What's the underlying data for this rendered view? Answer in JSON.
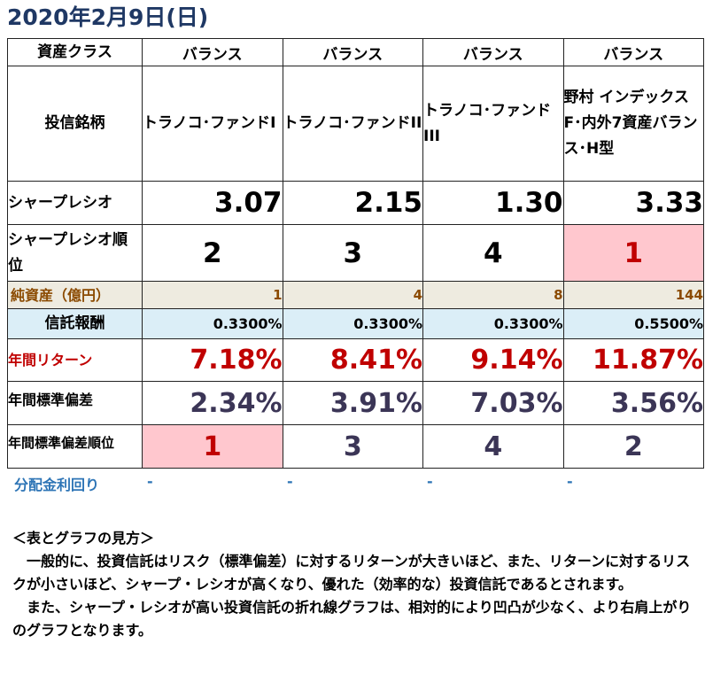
{
  "title": "2020年2月9日(日)",
  "table": {
    "asset_class": {
      "label": "資産クラス",
      "values": [
        "バランス",
        "バランス",
        "バランス",
        "バランス"
      ]
    },
    "fund_name": {
      "label": "投信銘柄",
      "values": [
        "トラノコ･ファンドI",
        "トラノコ･ファンドII",
        "トラノコ･ファンドIII",
        "野村 インデックスF･内外7資産バランス･H型"
      ]
    },
    "sharpe_ratio": {
      "label": "シャープレシオ",
      "values": [
        "3.07",
        "2.15",
        "1.30",
        "3.33"
      ]
    },
    "sharpe_rank": {
      "label": "シャープレシオ順位",
      "values": [
        "2",
        "3",
        "4",
        "1"
      ]
    },
    "net_assets": {
      "label": "純資産（億円）",
      "values": [
        "1",
        "4",
        "8",
        "144"
      ]
    },
    "trust_fee": {
      "label": "信託報酬",
      "values": [
        "0.3300%",
        "0.3300%",
        "0.3300%",
        "0.5500%"
      ]
    },
    "annual_return": {
      "label": "年間リターン",
      "values": [
        "7.18%",
        "8.41%",
        "9.14%",
        "11.87%"
      ]
    },
    "annual_sd": {
      "label": "年間標準偏差",
      "values": [
        "2.34%",
        "3.91%",
        "7.03%",
        "3.56%"
      ]
    },
    "annual_sd_rank": {
      "label": "年間標準偏差順位",
      "values": [
        "1",
        "3",
        "4",
        "2"
      ]
    }
  },
  "dividend_yield": {
    "label": "分配金利回り",
    "values": [
      "-",
      "-",
      "-",
      "-"
    ]
  },
  "note": {
    "heading": "＜表とグラフの見方＞",
    "para1": "　一般的に、投資信託はリスク（標準偏差）に対するリターンが大きいほど、また、リターンに対するリスクが小さいほど、シャープ・レシオが高くなり、優れた（効率的な）投資信託であるとされます。",
    "para2": "　また、シャープ・レシオが高い投資信託の折れ線グラフは、相対的により凹凸が少なく、より右肩上がりのグラフとなります。"
  },
  "colors": {
    "title": "#1f3864",
    "highlight_bg": "#ffc7ce",
    "rank_red": "#c00000",
    "assets_bg": "#eeebe0",
    "assets_text": "#8b4a00",
    "fee_bg": "#dbeef7",
    "sd_text": "#3b3556",
    "dividend_text": "#2e75b6"
  }
}
